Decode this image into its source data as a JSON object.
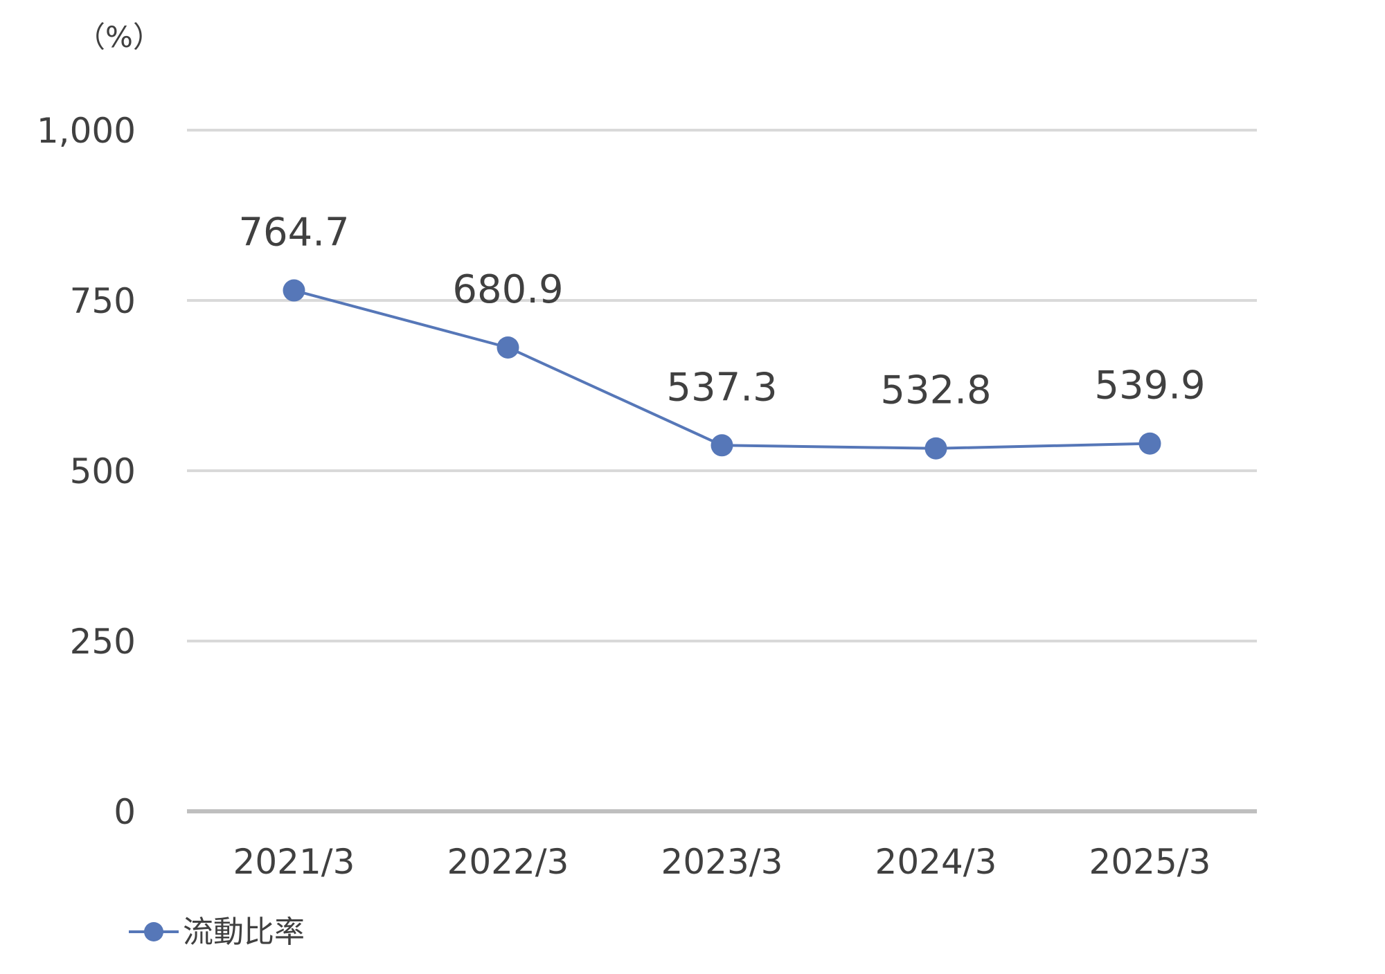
{
  "chart_data": {
    "type": "line",
    "unit_label": "（%）",
    "categories": [
      "2021/3",
      "2022/3",
      "2023/3",
      "2024/3",
      "2025/3"
    ],
    "series": [
      {
        "name": "流動比率",
        "values": [
          764.7,
          680.9,
          537.3,
          532.8,
          539.9
        ],
        "data_labels": [
          "764.7",
          "680.9",
          "537.3",
          "532.8",
          "539.9"
        ],
        "color": "#5677b8"
      }
    ],
    "ylim": [
      0,
      1000
    ],
    "y_ticks": [
      0,
      250,
      500,
      750,
      1000
    ],
    "y_tick_labels": [
      "0",
      "250",
      "500",
      "750",
      "1,000"
    ],
    "grid": true,
    "gridline_color": "#d9d9d9",
    "axis_color": "#bfbfbf",
    "legend_position": "bottom-left"
  }
}
